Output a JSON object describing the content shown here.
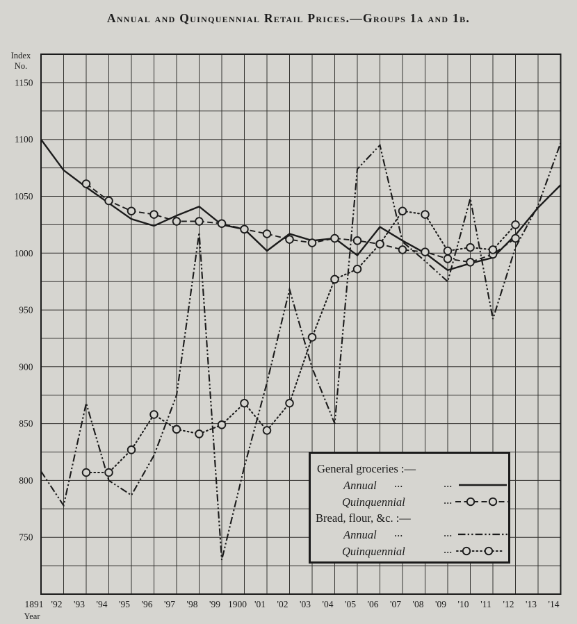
{
  "page": {
    "title": "Annual and Quinquennial Retail Prices.—Groups 1a and 1b."
  },
  "axes": {
    "y_axis_title_line1": "Index",
    "y_axis_title_line2": "No.",
    "x_axis_title": "Year",
    "y_tick_values": [
      1150,
      1100,
      1050,
      1000,
      950,
      900,
      850,
      800,
      750
    ],
    "y_tick_labels": [
      "1150",
      "1100",
      "1050",
      "1000",
      "950",
      "900",
      "850",
      "800",
      "750"
    ],
    "x_tick_labels": [
      "1891",
      "'92",
      "'93",
      "'94",
      "'95",
      "'96",
      "'97",
      "'98",
      "'99",
      "1900",
      "'01",
      "'02",
      "'03",
      "'04",
      "'05",
      "'06",
      "'07",
      "'08",
      "'09",
      "'10",
      "'11",
      "'12",
      "'13",
      "'14"
    ]
  },
  "legend": {
    "heading1": "General groceries :—",
    "row1_label": "Annual",
    "row1_leader_a": "...",
    "row1_leader_b": "...",
    "row2_label": "Quinquennial",
    "row2_leader": "...",
    "heading2": "Bread, flour, &c. :—",
    "row3_label": "Annual",
    "row3_leader_a": "...",
    "row3_leader_b": "...",
    "row4_label": "Quinquennial",
    "row4_leader": "..."
  },
  "colors": {
    "paper": "#d6d5d0",
    "ink": "#1b1b1b",
    "grid": "#33322f"
  },
  "chart_data": {
    "type": "line",
    "title": "Annual and Quinquennial Retail Prices — Groups 1a and 1b",
    "xlabel": "Year",
    "ylabel": "Index No.",
    "xlim": [
      1891,
      1914
    ],
    "ylim": [
      700,
      1175
    ],
    "y_grid_step": 25,
    "x_grid_step": 1,
    "grid": "on",
    "legend_position": "inside lower right",
    "x": [
      1891,
      1892,
      1893,
      1894,
      1895,
      1896,
      1897,
      1898,
      1899,
      1900,
      1901,
      1902,
      1903,
      1904,
      1905,
      1906,
      1907,
      1908,
      1909,
      1910,
      1911,
      1912,
      1913,
      1914
    ],
    "series": [
      {
        "id": "gg_quinquennial",
        "name": "General groceries — Quinquennial",
        "style": "dash",
        "marker": true,
        "years": [
          1893,
          1894,
          1895,
          1896,
          1897,
          1898,
          1899,
          1900,
          1901,
          1902,
          1903,
          1904,
          1905,
          1906,
          1907,
          1908,
          1909,
          1910,
          1911,
          1912
        ],
        "values": [
          1061,
          1046,
          1037,
          1034,
          1028,
          1028,
          1026,
          1021,
          1017,
          1012,
          1009,
          1013,
          1011,
          1008,
          1003,
          1001,
          995,
          992,
          999,
          1013
        ]
      },
      {
        "id": "bread_quinquennial",
        "name": "Bread, flour, &c. — Quinquennial",
        "style": "dots",
        "marker": true,
        "years": [
          1893,
          1894,
          1895,
          1896,
          1897,
          1898,
          1899,
          1900,
          1901,
          1902,
          1903,
          1904,
          1905,
          1906,
          1907,
          1908,
          1909,
          1910,
          1911,
          1912
        ],
        "values": [
          807,
          807,
          827,
          858,
          845,
          841,
          849,
          868,
          844,
          868,
          926,
          977,
          986,
          1008,
          1037,
          1034,
          1002,
          1005,
          1003,
          1025
        ]
      },
      {
        "id": "bread_annual",
        "name": "Bread, flour, &c. — Annual",
        "style": "dashdotdot",
        "marker": false,
        "years": [
          1891,
          1892,
          1893,
          1894,
          1895,
          1896,
          1897,
          1898,
          1899,
          1900,
          1901,
          1902,
          1903,
          1904,
          1905,
          1906,
          1907,
          1908,
          1909,
          1910,
          1911,
          1912,
          1913,
          1914
        ],
        "values": [
          808,
          778,
          868,
          800,
          787,
          822,
          875,
          1018,
          730,
          812,
          886,
          968,
          899,
          850,
          1074,
          1095,
          1010,
          993,
          975,
          1048,
          942,
          1005,
          1042,
          1097
        ]
      },
      {
        "id": "gg_annual",
        "name": "General groceries — Annual",
        "style": "solid",
        "marker": false,
        "years": [
          1891,
          1892,
          1893,
          1894,
          1895,
          1896,
          1897,
          1898,
          1899,
          1900,
          1901,
          1902,
          1903,
          1904,
          1905,
          1906,
          1907,
          1908,
          1909,
          1910,
          1911,
          1912,
          1913,
          1914
        ],
        "values": [
          1100,
          1073,
          1058,
          1044,
          1030,
          1024,
          1033,
          1041,
          1025,
          1021,
          1002,
          1017,
          1011,
          1013,
          998,
          1023,
          1011,
          1000,
          985,
          991,
          996,
          1016,
          1040,
          1060
        ]
      }
    ]
  }
}
